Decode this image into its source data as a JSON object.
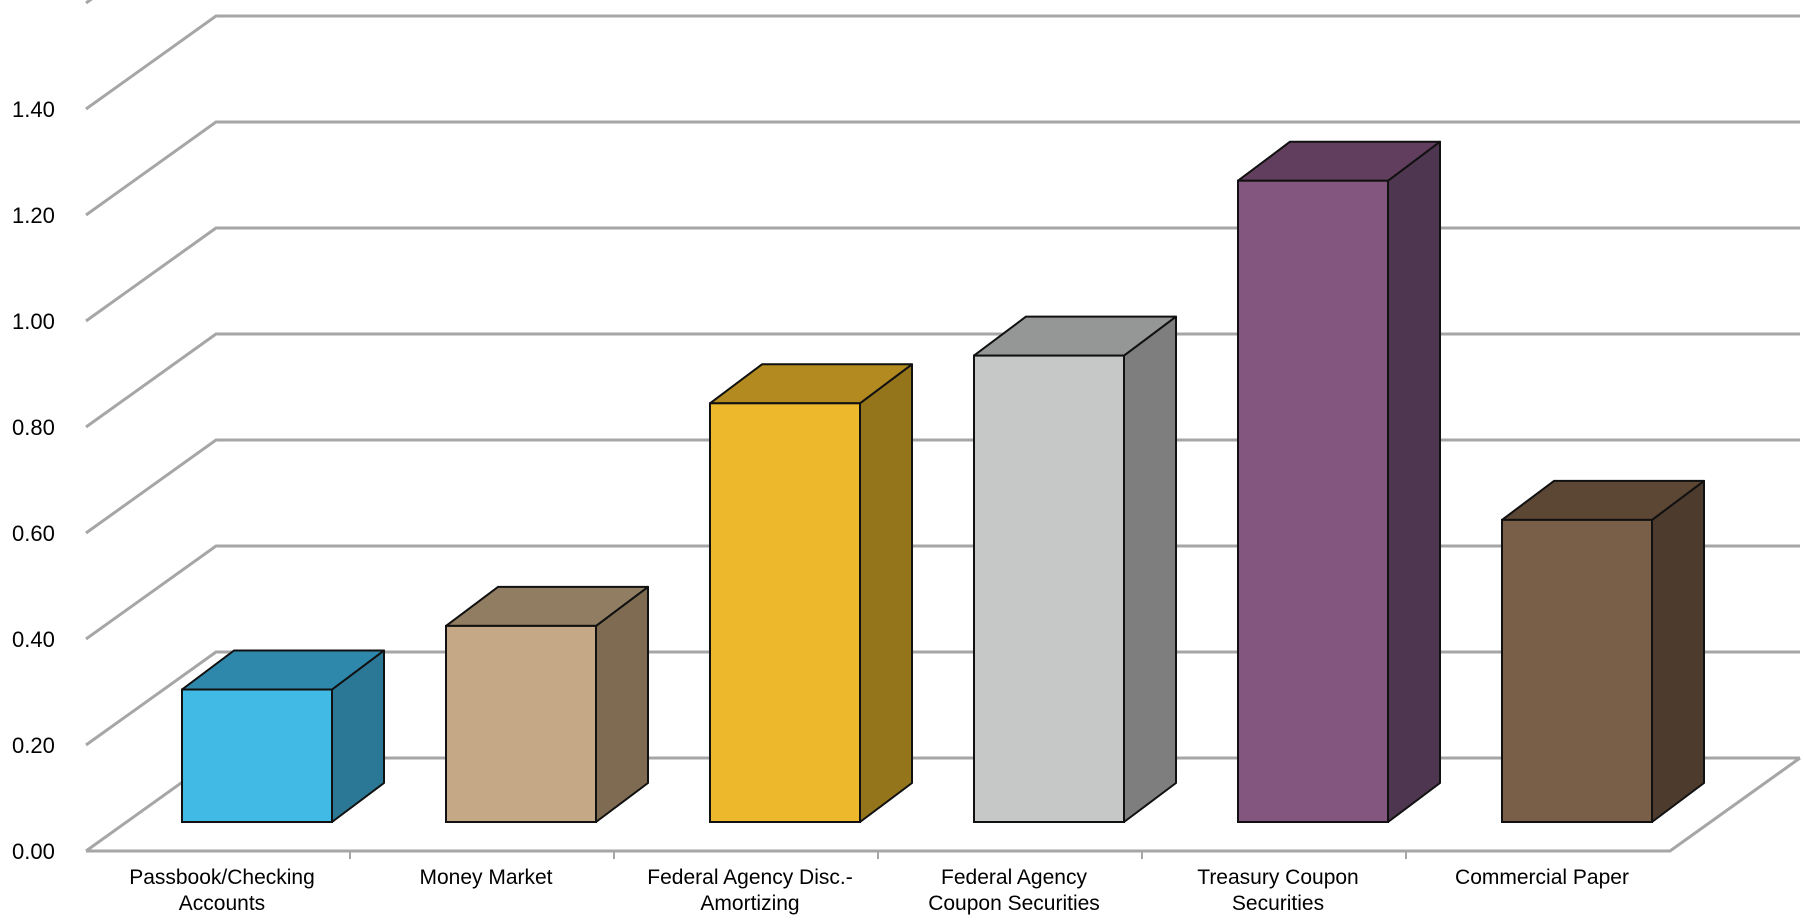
{
  "chart_data": {
    "type": "bar",
    "title": "",
    "xlabel": "",
    "ylabel": "",
    "ylim": [
      0,
      1.6
    ],
    "grid": true,
    "legend": "none",
    "y_ticks": [
      "0.00",
      "0.20",
      "0.40",
      "0.60",
      "0.80",
      "1.00",
      "1.20",
      "1.40"
    ],
    "categories": [
      [
        "Passbook/Checking",
        "Accounts"
      ],
      [
        "Money Market"
      ],
      [
        "Federal Agency Disc.-",
        "Amortizing"
      ],
      [
        "Federal Agency",
        "Coupon Securities"
      ],
      [
        "Treasury Coupon",
        "Securities"
      ],
      [
        "Commercial Paper"
      ]
    ],
    "values": [
      0.25,
      0.37,
      0.79,
      0.88,
      1.21,
      0.57
    ],
    "colors": [
      {
        "front": "#41BBE6",
        "side": "#2A7896",
        "top": "#2E88AC"
      },
      {
        "front": "#C5A986",
        "side": "#7E6B51",
        "top": "#917D61"
      },
      {
        "front": "#EEB82C",
        "side": "#95751C",
        "top": "#B38A20"
      },
      {
        "front": "#C6C8C7",
        "side": "#7E7E7E",
        "top": "#959796"
      },
      {
        "front": "#82567E",
        "side": "#4E3550",
        "top": "#613E5D"
      },
      {
        "front": "#7A5F48",
        "side": "#4D3B2D",
        "top": "#5C4634"
      }
    ],
    "grid_color": "#A6A6A6"
  }
}
